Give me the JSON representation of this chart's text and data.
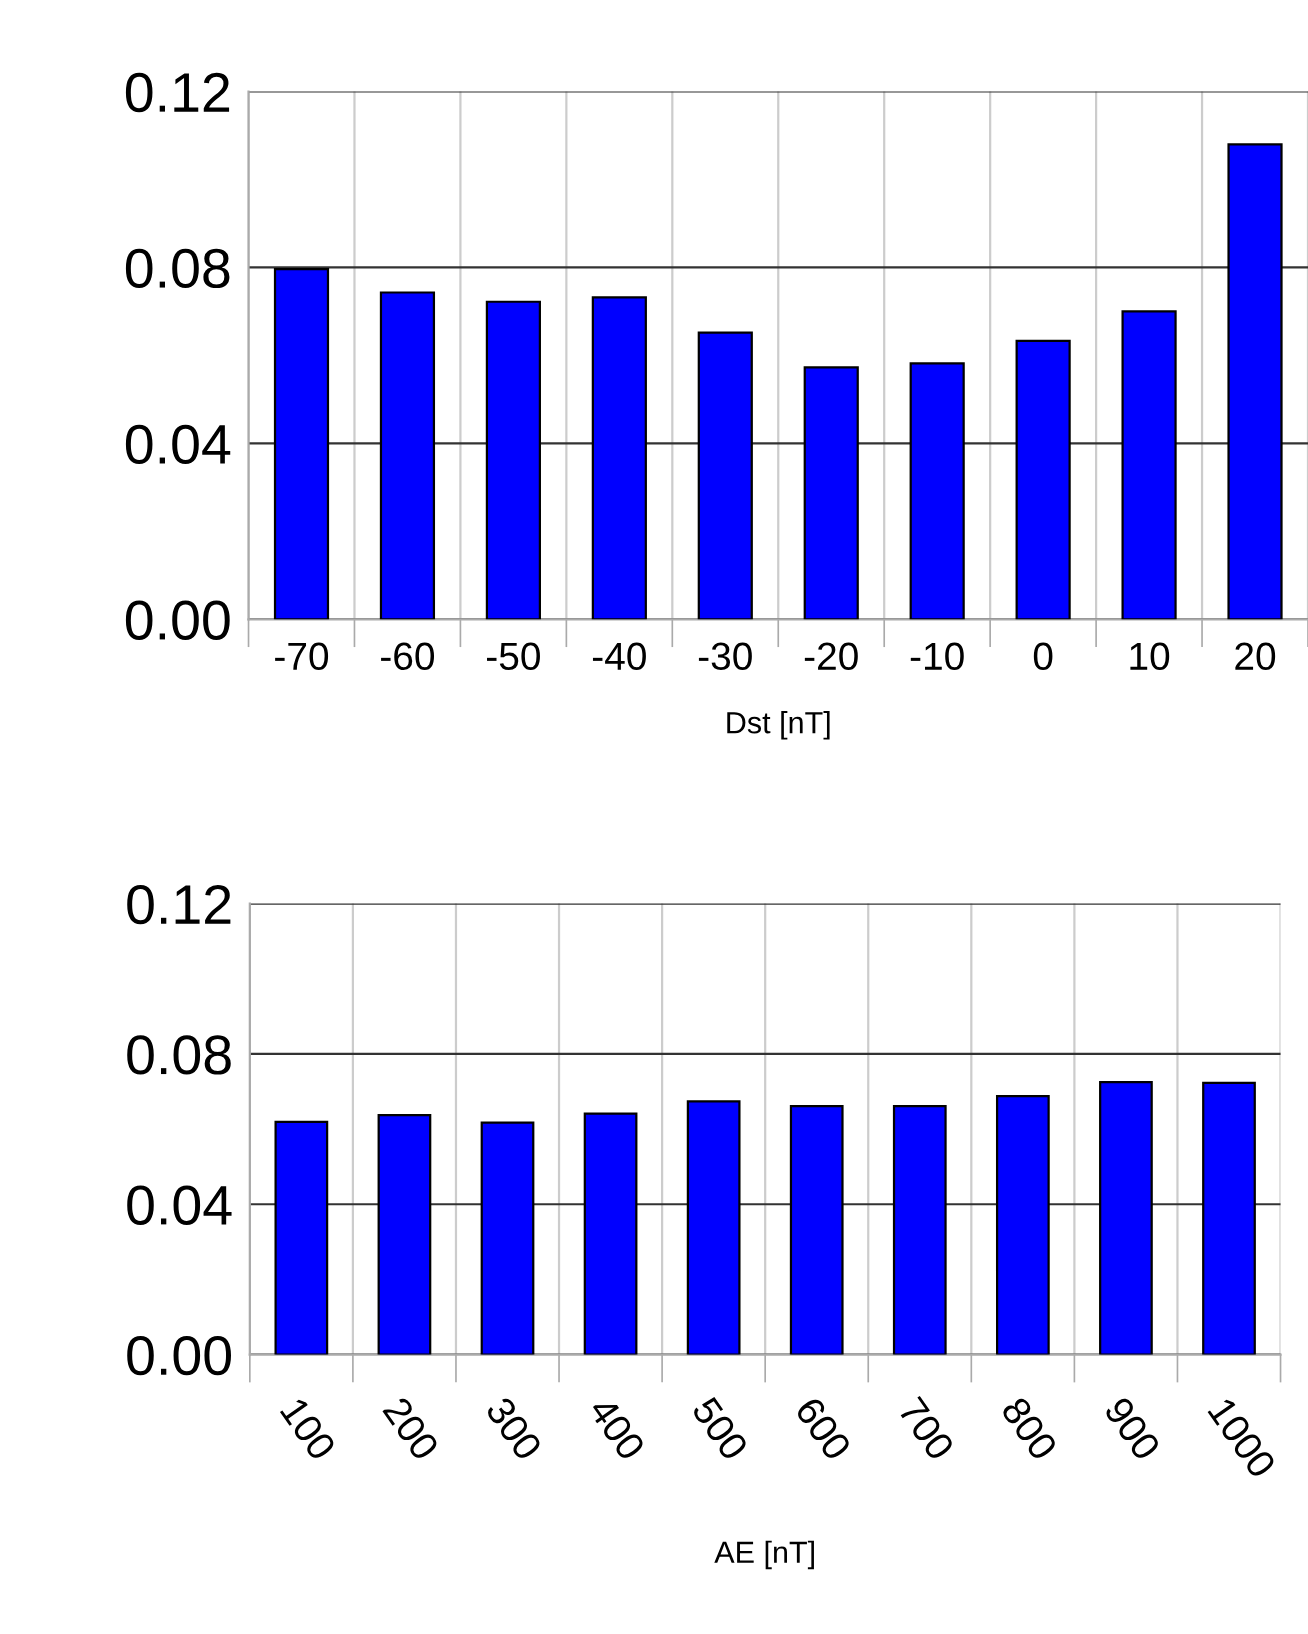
{
  "chart_data": [
    {
      "type": "bar",
      "xlabel": "Dst [nT]",
      "categories": [
        "-70",
        "-60",
        "-50",
        "-40",
        "-30",
        "-20",
        "-10",
        "0",
        "10",
        "20"
      ],
      "values": [
        0.0796,
        0.0743,
        0.0722,
        0.0732,
        0.0652,
        0.0573,
        0.0582,
        0.0633,
        0.07,
        0.108
      ],
      "color": "#0000ff",
      "ylim": [
        0,
        0.12
      ],
      "yticks": [
        {
          "value": 0,
          "label": "0.00"
        },
        {
          "value": 0.04,
          "label": "0.04"
        },
        {
          "value": 0.08,
          "label": "0.08"
        },
        {
          "value": 0.12,
          "label": "0.12"
        }
      ],
      "grid": true
    },
    {
      "type": "bar",
      "xlabel": "AE [nT]",
      "categories": [
        "100",
        "200",
        "300",
        "400",
        "500",
        "600",
        "700",
        "800",
        "900",
        "1000"
      ],
      "values": [
        0.0619,
        0.0637,
        0.0617,
        0.0641,
        0.0674,
        0.0661,
        0.0661,
        0.0688,
        0.0725,
        0.0723
      ],
      "color": "#0000ff",
      "ylim": [
        0,
        0.12
      ],
      "yticks": [
        {
          "value": 0,
          "label": "0.00"
        },
        {
          "value": 0.04,
          "label": "0.04"
        },
        {
          "value": 0.08,
          "label": "0.08"
        },
        {
          "value": 0.12,
          "label": "0.12"
        }
      ],
      "grid": true
    }
  ]
}
